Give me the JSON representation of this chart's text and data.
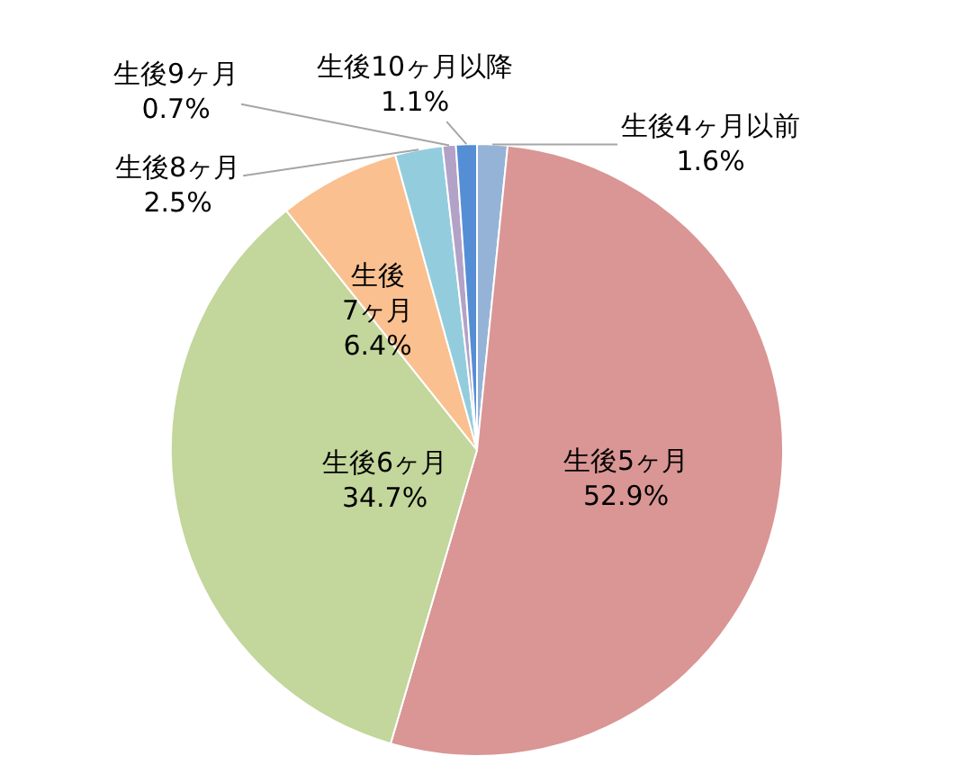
{
  "chart_data": {
    "type": "pie",
    "categories": [
      "生後4ヶ月以前",
      "生後5ヶ月",
      "生後6ヶ月",
      "生後\n7ヶ月",
      "生後8ヶ月",
      "生後9ヶ月",
      "生後10ヶ月以降"
    ],
    "values": [
      1.6,
      52.9,
      34.7,
      6.4,
      2.5,
      0.7,
      1.1
    ],
    "value_labels": [
      "1.6%",
      "52.9%",
      "34.7%",
      "6.4%",
      "2.5%",
      "0.7%",
      "1.1%"
    ],
    "colors": [
      "#95b3d7",
      "#d99694",
      "#c3d69b",
      "#fac090",
      "#93cddd",
      "#b3a2c7",
      "#558ed5"
    ]
  }
}
